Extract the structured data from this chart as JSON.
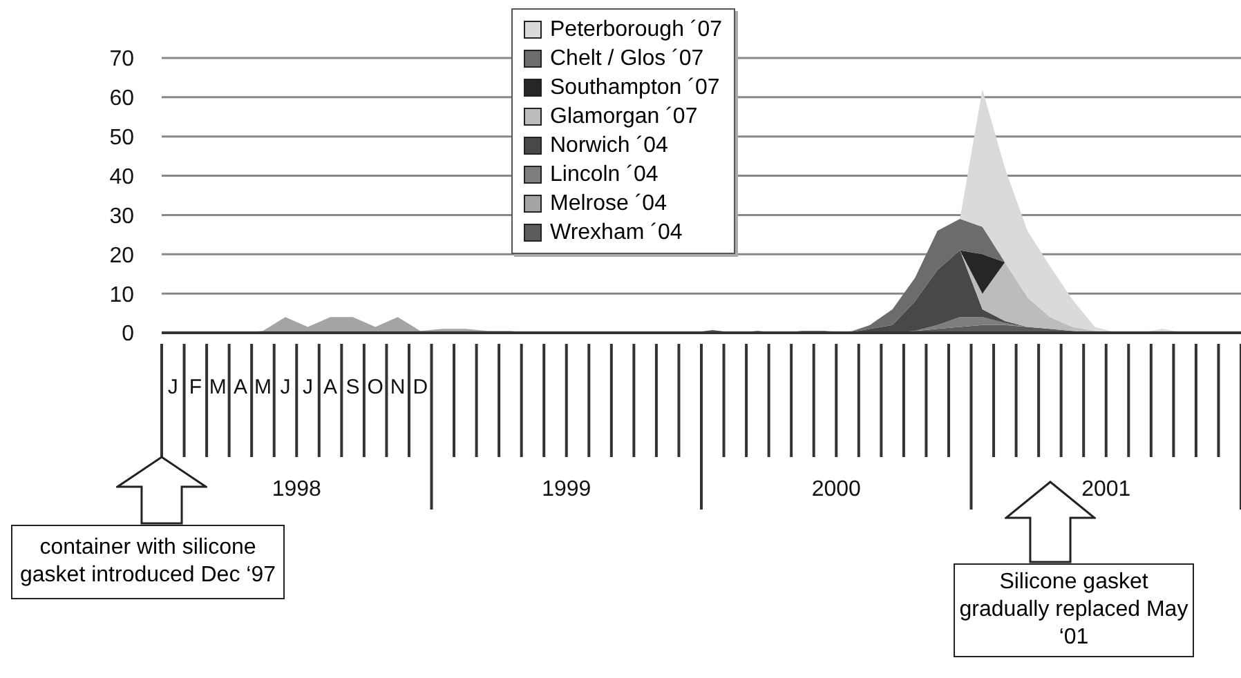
{
  "chart_data": {
    "type": "area",
    "stacked": true,
    "legend": "top",
    "grid": "y",
    "ylim": [
      0,
      70
    ],
    "yticks": [
      0,
      10,
      20,
      30,
      40,
      50,
      60,
      70
    ],
    "categories": [
      "J",
      "F",
      "M",
      "A",
      "M",
      "J",
      "J",
      "A",
      "S",
      "O",
      "N",
      "D",
      null,
      null,
      null,
      null,
      null,
      null,
      null,
      null,
      null,
      null,
      null,
      null,
      null,
      null,
      null,
      null,
      null,
      null,
      null,
      null,
      null,
      null,
      null,
      null,
      null,
      null,
      null,
      null,
      null,
      null,
      null,
      null,
      null,
      null,
      null,
      null
    ],
    "series": [
      {
        "name": "Wrexham ´04",
        "color": "#5c5c5c",
        "values": [
          null,
          null,
          null,
          null,
          null,
          null,
          null,
          null,
          null,
          null,
          null,
          null,
          null,
          null,
          null,
          null,
          null,
          null,
          null,
          null,
          null,
          null,
          null,
          0,
          0.7,
          0,
          0.5,
          0,
          0.5,
          0.5,
          0,
          null,
          0,
          0.5,
          1,
          1.5,
          2,
          2,
          1.5,
          1,
          0.5,
          0,
          null,
          null,
          null,
          null,
          null,
          null
        ]
      },
      {
        "name": "Melrose ´04",
        "color": "#a4a4a4",
        "values": [
          null,
          null,
          null,
          0,
          0.5,
          4,
          1.5,
          4,
          4,
          1.5,
          4,
          0.5,
          1,
          1,
          0.5,
          0.5,
          0,
          null,
          null,
          null,
          null,
          null,
          null,
          null,
          null,
          null,
          null,
          null,
          null,
          null,
          null,
          null,
          null,
          null,
          null,
          null,
          null,
          null,
          null,
          null,
          null,
          null,
          null,
          null,
          null,
          null,
          null,
          null
        ]
      },
      {
        "name": "Lincoln ´04",
        "color": "#7e7e7e",
        "values": [
          null,
          null,
          null,
          null,
          null,
          null,
          null,
          null,
          null,
          null,
          null,
          null,
          null,
          null,
          null,
          null,
          null,
          null,
          null,
          null,
          null,
          null,
          null,
          null,
          null,
          null,
          null,
          null,
          null,
          null,
          null,
          null,
          null,
          0,
          1,
          2.5,
          2,
          0.5,
          0,
          null,
          null,
          null,
          null,
          null,
          null,
          null,
          null,
          null
        ]
      },
      {
        "name": "Norwich ´04",
        "color": "#484848",
        "values": [
          null,
          null,
          null,
          null,
          null,
          null,
          null,
          null,
          null,
          null,
          null,
          null,
          null,
          null,
          null,
          null,
          null,
          null,
          null,
          null,
          null,
          null,
          null,
          null,
          null,
          null,
          null,
          null,
          null,
          null,
          0,
          1,
          2,
          7.5,
          14,
          17,
          2,
          0.5,
          0,
          null,
          null,
          null,
          null,
          null,
          null,
          null,
          null,
          null
        ]
      },
      {
        "name": "Glamorgan ´07",
        "color": "#bcbcbc",
        "values": [
          null,
          null,
          null,
          null,
          null,
          null,
          null,
          null,
          null,
          null,
          null,
          null,
          null,
          null,
          null,
          null,
          null,
          null,
          null,
          null,
          null,
          null,
          null,
          null,
          null,
          null,
          null,
          null,
          null,
          null,
          null,
          null,
          null,
          null,
          null,
          0,
          4,
          15,
          7.5,
          3,
          1,
          0.5,
          0,
          null,
          null,
          null,
          null,
          null
        ]
      },
      {
        "name": "Southampton ´07",
        "color": "#262626",
        "values": [
          null,
          null,
          null,
          null,
          null,
          null,
          null,
          null,
          null,
          null,
          null,
          null,
          null,
          null,
          null,
          null,
          null,
          null,
          null,
          null,
          null,
          null,
          null,
          null,
          null,
          null,
          null,
          null,
          null,
          null,
          null,
          null,
          null,
          null,
          null,
          0,
          10,
          0,
          null,
          null,
          null,
          null,
          null,
          null,
          null,
          null,
          null,
          null
        ]
      },
      {
        "name": "Chelt / Glos ´07",
        "color": "#6c6c6c",
        "values": [
          null,
          null,
          null,
          null,
          null,
          null,
          null,
          null,
          null,
          null,
          null,
          null,
          null,
          null,
          null,
          null,
          null,
          null,
          null,
          null,
          null,
          null,
          null,
          null,
          null,
          null,
          null,
          null,
          null,
          null,
          0,
          1,
          4,
          6,
          10,
          8,
          7,
          0,
          null,
          null,
          null,
          null,
          null,
          null,
          null,
          null,
          null,
          null
        ]
      },
      {
        "name": "Peterborough ´07",
        "color": "#dadada",
        "values": [
          null,
          null,
          null,
          null,
          null,
          null,
          null,
          null,
          null,
          null,
          null,
          null,
          null,
          null,
          null,
          null,
          null,
          null,
          null,
          null,
          null,
          null,
          null,
          null,
          null,
          null,
          null,
          null,
          null,
          0,
          0.3,
          0,
          null,
          null,
          null,
          0,
          35,
          24,
          17,
          13,
          7,
          1,
          0,
          0,
          1,
          0,
          null,
          null
        ]
      }
    ],
    "annotations": [
      "1998",
      "1999",
      "2000",
      "2001",
      "container with silicone gasket introduced Dec ‘97",
      "Silicone gasket gradually replaced May ‘01"
    ]
  }
}
